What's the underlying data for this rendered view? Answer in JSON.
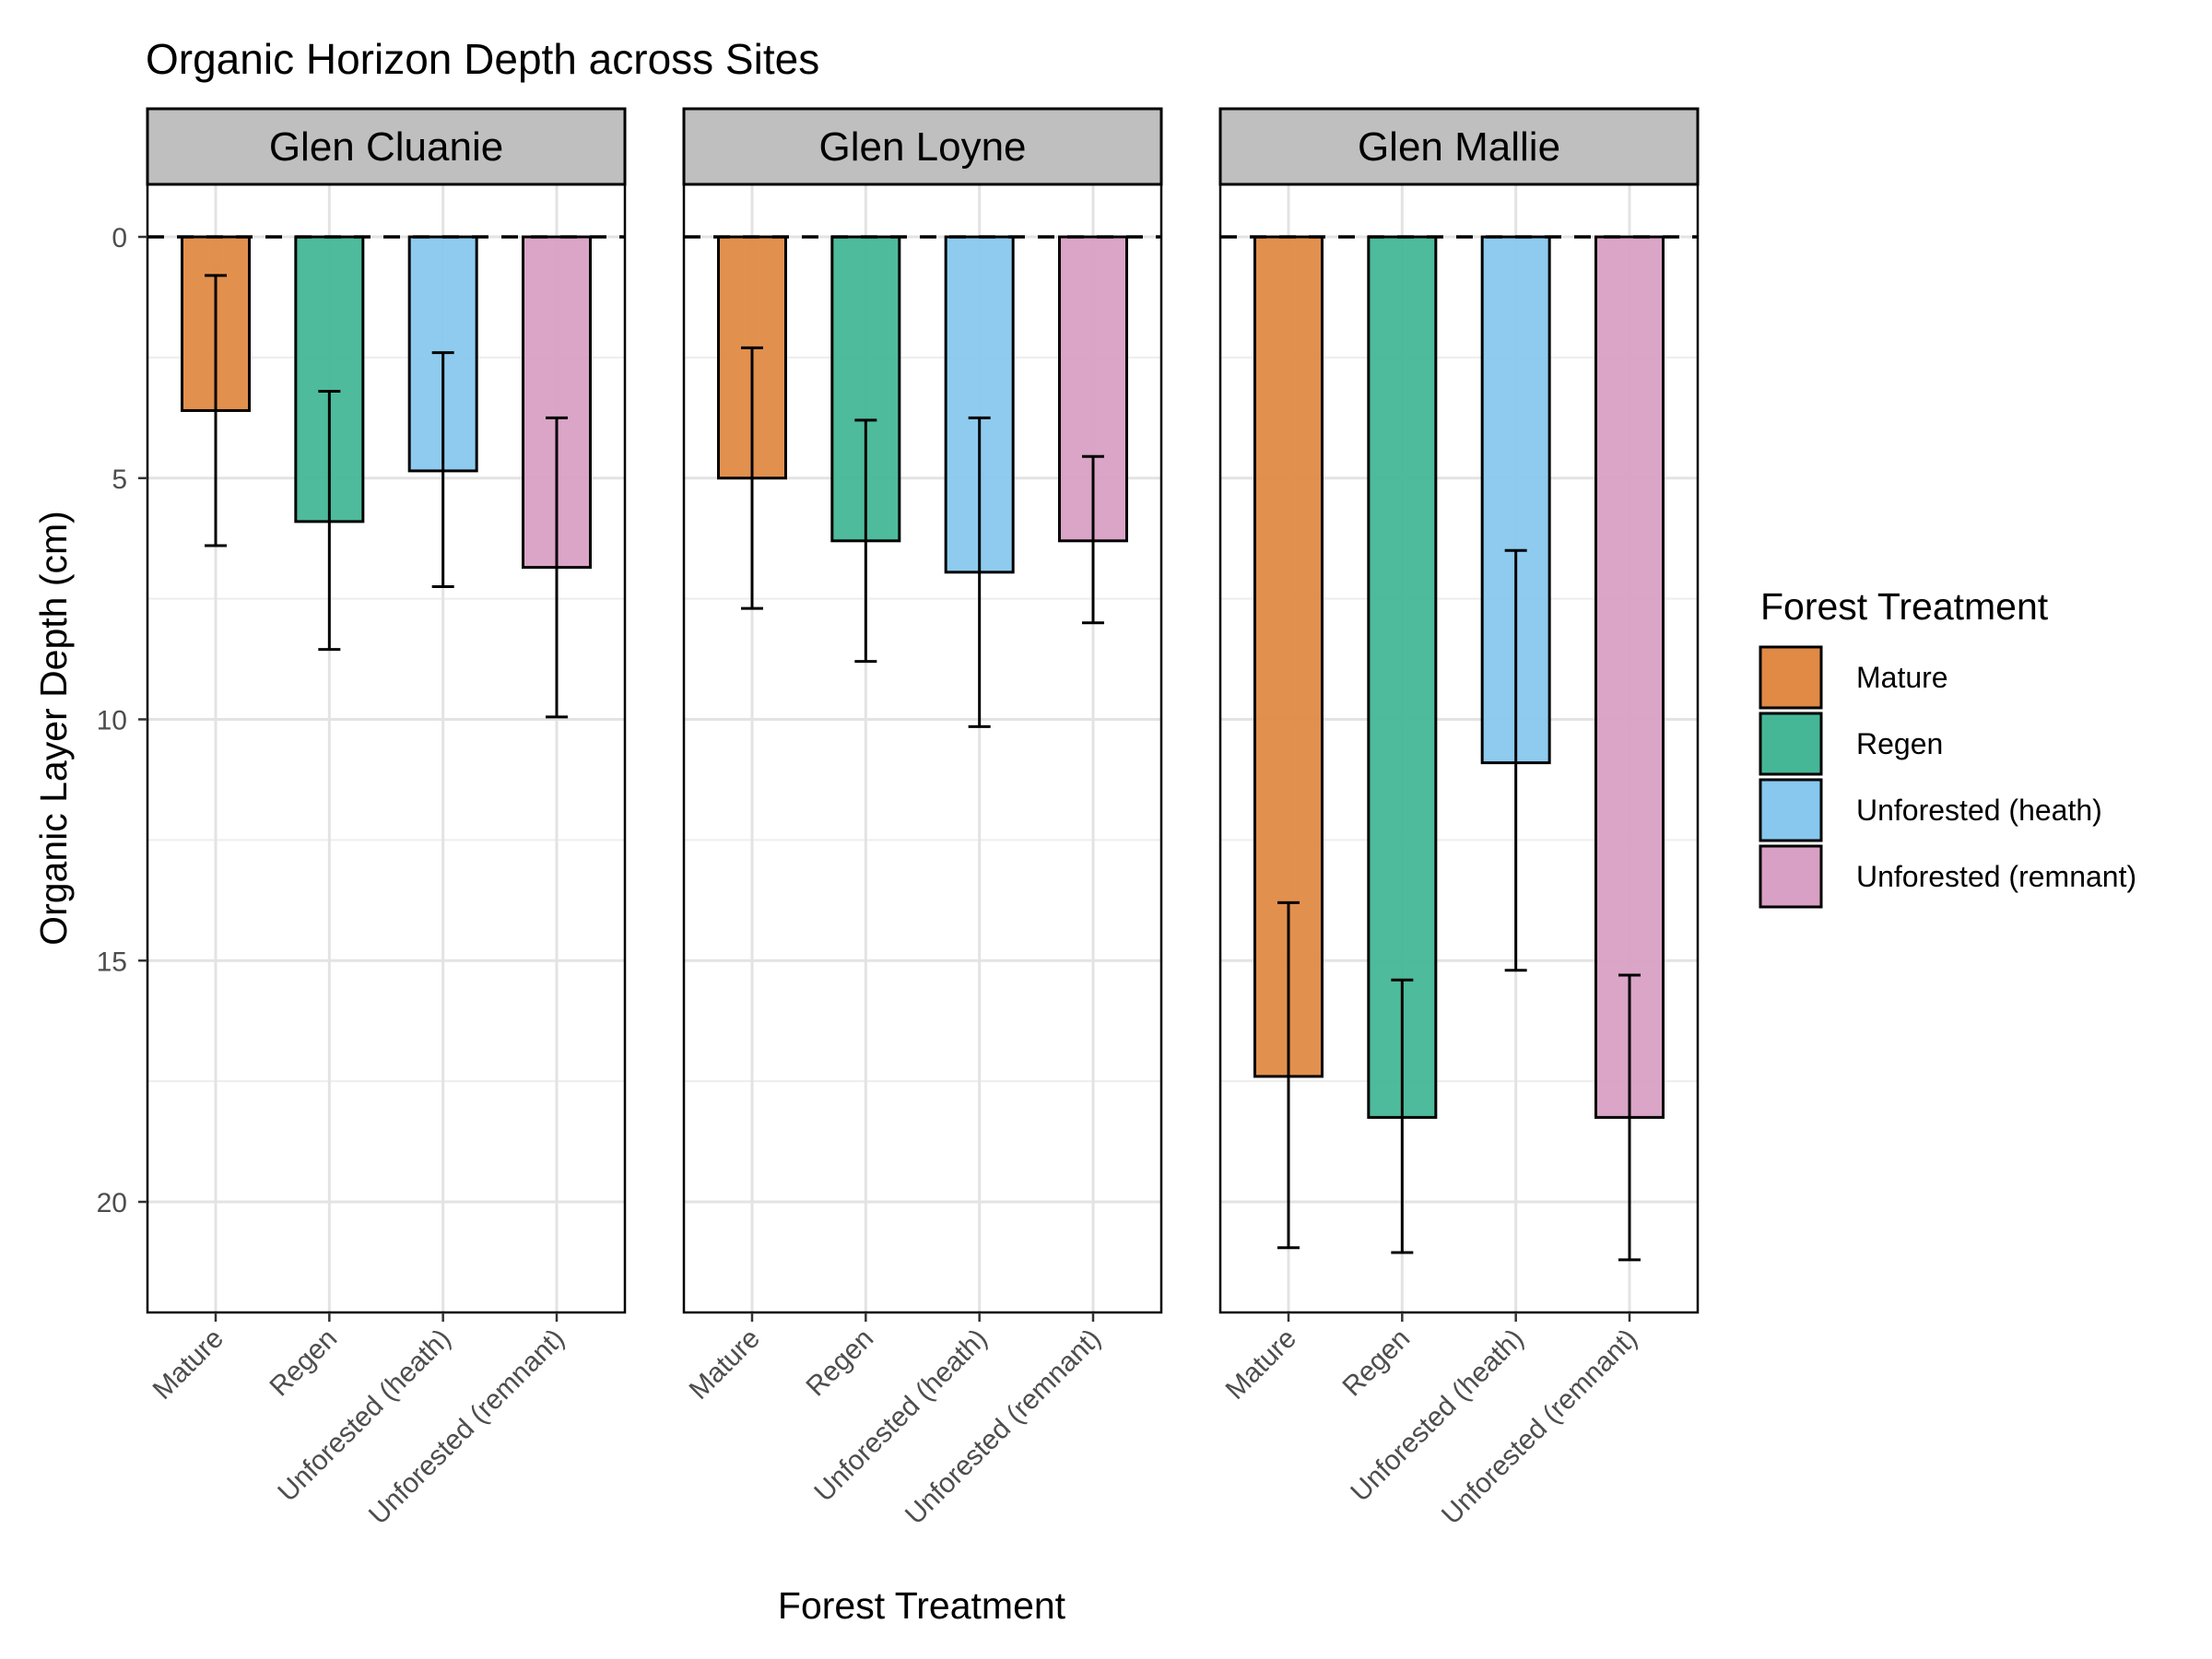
{
  "chart_data": {
    "type": "bar",
    "title": "Organic Horizon Depth across Sites",
    "xlabel": "Forest Treatment",
    "ylabel": "Organic Layer Depth (cm)",
    "y_axis_reversed": true,
    "ylim": [
      0,
      22.3
    ],
    "yticks": [
      0,
      5,
      10,
      15,
      20
    ],
    "reference_line": {
      "y": 0,
      "style": "dashed"
    },
    "grid": true,
    "legend": {
      "title": "Forest Treatment",
      "placement": "right"
    },
    "categories": [
      "Mature",
      "Regen",
      "Unforested (heath)",
      "Unforested (remnant)"
    ],
    "colors": [
      "#E08A45",
      "#45B797",
      "#88C8EE",
      "#D8A0C4"
    ],
    "panels": [
      {
        "name": "Glen Cluanie",
        "values": [
          3.6,
          5.9,
          4.85,
          6.85
        ],
        "error_low": [
          0.8,
          3.2,
          2.4,
          3.75
        ],
        "error_high": [
          6.4,
          8.55,
          7.25,
          9.95
        ]
      },
      {
        "name": "Glen Loyne",
        "values": [
          5.0,
          6.3,
          6.95,
          6.3
        ],
        "error_low": [
          2.3,
          3.8,
          3.75,
          4.55
        ],
        "error_high": [
          7.7,
          8.8,
          10.15,
          8.0
        ]
      },
      {
        "name": "Glen Mallie",
        "values": [
          17.4,
          18.25,
          10.9,
          18.25
        ],
        "error_low": [
          13.8,
          15.4,
          6.5,
          15.3
        ],
        "error_high": [
          20.95,
          21.05,
          15.2,
          21.2
        ]
      }
    ]
  }
}
